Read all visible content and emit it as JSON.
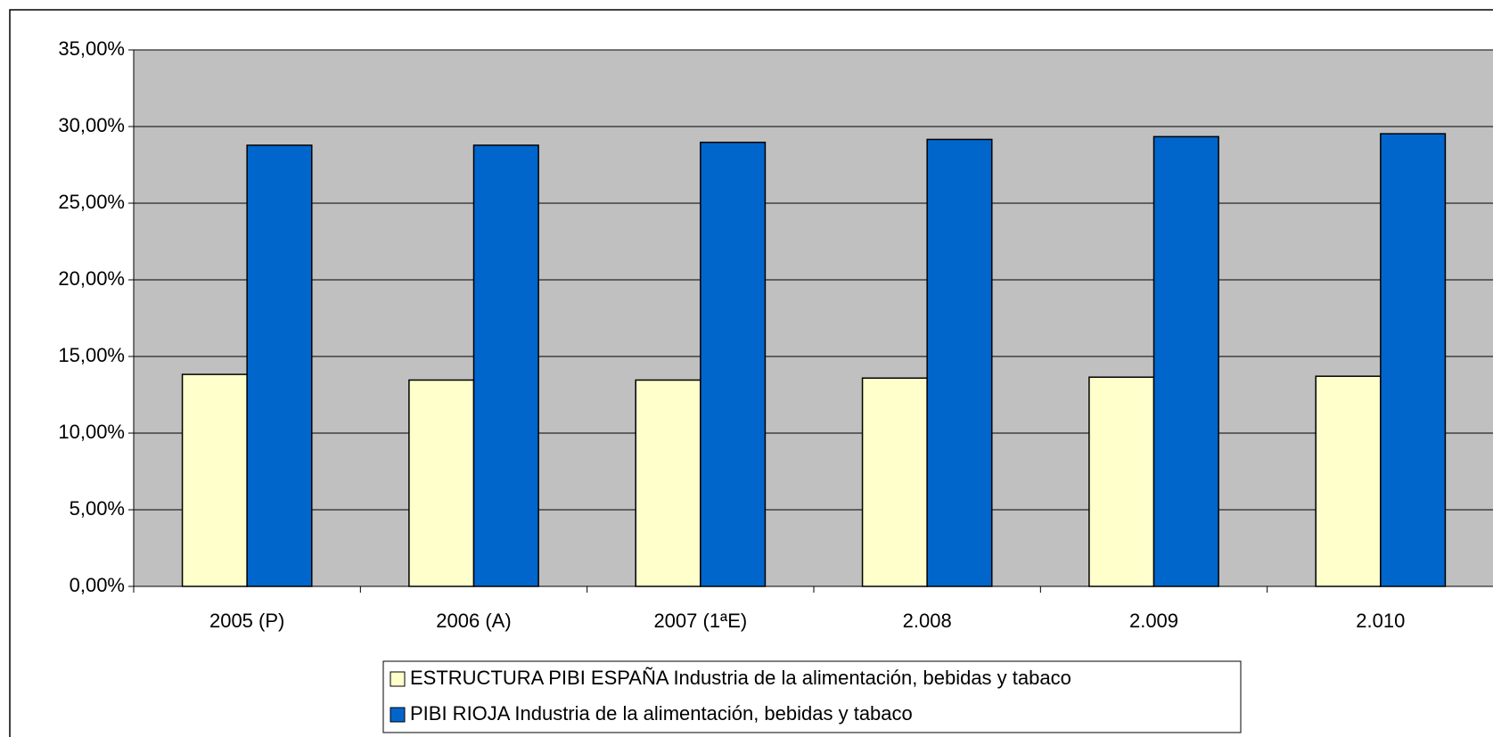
{
  "chart_data": {
    "type": "bar",
    "categories": [
      "2005 (P)",
      "2006 (A)",
      "2007 (1ªE)",
      "2.008",
      "2.009",
      "2.010"
    ],
    "series": [
      {
        "name": "ESTRUCTURA PIBI ESPAÑA Industria de la alimentación, bebidas y tabaco",
        "color": "#ffffcc",
        "values": [
          13.83,
          13.46,
          13.46,
          13.59,
          13.65,
          13.71
        ]
      },
      {
        "name": "PIBI RIOJA Industria de la alimentación, bebidas y tabaco",
        "color": "#0066cc",
        "values": [
          28.78,
          28.78,
          28.97,
          29.16,
          29.34,
          29.53
        ]
      }
    ],
    "ylim": [
      0,
      35
    ],
    "yticks": [
      {
        "value": 0,
        "label": "0,00%"
      },
      {
        "value": 5,
        "label": "5,00%"
      },
      {
        "value": 10,
        "label": "10,00%"
      },
      {
        "value": 15,
        "label": "15,00%"
      },
      {
        "value": 20,
        "label": "20,00%"
      },
      {
        "value": 25,
        "label": "25,00%"
      },
      {
        "value": 30,
        "label": "30,00%"
      },
      {
        "value": 35,
        "label": "35,00%"
      }
    ],
    "grid": true,
    "plot_background": "#c0c0c0",
    "legend": "bottom"
  }
}
